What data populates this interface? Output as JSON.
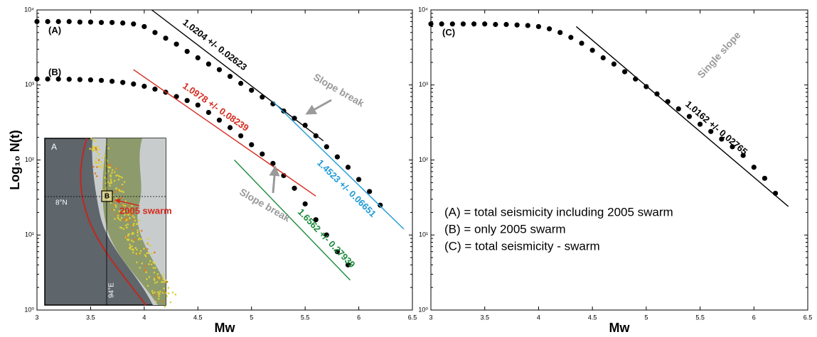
{
  "chart_data": [
    {
      "type": "scatter",
      "ylabel": "Log₁₀ N(t)",
      "xlabel": "Mw",
      "ylog": true,
      "xlim": [
        3,
        6.5
      ],
      "xticks": [
        3,
        3.5,
        4,
        4.5,
        5,
        5.5,
        6,
        6.5
      ],
      "ylim": [
        1,
        10000
      ],
      "yticks": [
        {
          "value": 1,
          "label": "10⁰"
        },
        {
          "value": 10,
          "label": "10¹"
        },
        {
          "value": 100,
          "label": "10²"
        },
        {
          "value": 1000,
          "label": "10³"
        },
        {
          "value": 10000,
          "label": "10⁴"
        }
      ],
      "series": [
        {
          "name": "(A)",
          "color": "#000000",
          "x": [
            3.0,
            3.1,
            3.2,
            3.3,
            3.4,
            3.5,
            3.6,
            3.7,
            3.8,
            3.9,
            4.0,
            4.1,
            4.2,
            4.3,
            4.4,
            4.5,
            4.6,
            4.7,
            4.8,
            4.9,
            5.0,
            5.1,
            5.2,
            5.3,
            5.4,
            5.5,
            5.6,
            5.7,
            5.8,
            5.9,
            6.0,
            6.1,
            6.2
          ],
          "values": [
            7000,
            7000,
            7000,
            7000,
            6900,
            6900,
            6800,
            6800,
            6700,
            6500,
            6000,
            5000,
            4200,
            3500,
            2800,
            2300,
            1900,
            1600,
            1300,
            1050,
            850,
            690,
            560,
            450,
            360,
            290,
            210,
            150,
            110,
            80,
            55,
            38,
            25
          ]
        },
        {
          "name": "(B)",
          "color": "#000000",
          "x": [
            3.0,
            3.1,
            3.2,
            3.3,
            3.4,
            3.5,
            3.6,
            3.7,
            3.8,
            3.9,
            4.0,
            4.1,
            4.2,
            4.3,
            4.4,
            4.5,
            4.6,
            4.7,
            4.8,
            4.9,
            5.0,
            5.1,
            5.2,
            5.3,
            5.4,
            5.5,
            5.6,
            5.7,
            5.8,
            5.9
          ],
          "values": [
            1200,
            1200,
            1200,
            1190,
            1180,
            1170,
            1150,
            1120,
            1080,
            1030,
            960,
            880,
            800,
            700,
            620,
            540,
            430,
            340,
            270,
            210,
            160,
            120,
            90,
            62,
            42,
            26,
            16,
            10,
            6,
            4
          ]
        }
      ],
      "fits": [
        {
          "name": "1.0204 +/- 0.02623",
          "color": "#000000",
          "x": [
            4.07,
            5.67
          ],
          "values": [
            10000,
            180
          ]
        },
        {
          "name": "1.0978 +/- 0.08239",
          "color": "#d42a1e",
          "x": [
            3.9,
            5.6
          ],
          "values": [
            1600,
            33
          ]
        },
        {
          "name": "1.4523 +/- 0.06651",
          "color": "#1e9ad6",
          "x": [
            5.2,
            6.42
          ],
          "values": [
            600,
            12
          ]
        },
        {
          "name": "1.6562 +/- 0.27939",
          "color": "#1a8a3a",
          "x": [
            4.84,
            5.92
          ],
          "values": [
            100,
            2.5
          ]
        }
      ],
      "annotations": [
        "Slope break",
        "Slope break"
      ],
      "inset": {
        "panel": "A",
        "box": "B",
        "lat": "8°N",
        "lon": "94°E",
        "label": "2005 swarm"
      }
    },
    {
      "type": "scatter",
      "xlabel": "Mw",
      "ylog": true,
      "xlim": [
        3,
        6.5
      ],
      "xticks": [
        3,
        3.5,
        4,
        4.5,
        5,
        5.5,
        6,
        6.5
      ],
      "ylim": [
        1,
        10000
      ],
      "yticks": [
        {
          "value": 1,
          "label": "10⁰"
        },
        {
          "value": 10,
          "label": "10¹"
        },
        {
          "value": 100,
          "label": "10²"
        },
        {
          "value": 1000,
          "label": "10³"
        },
        {
          "value": 10000,
          "label": "10⁴"
        }
      ],
      "series": [
        {
          "name": "(C)",
          "color": "#000000",
          "x": [
            3.0,
            3.1,
            3.2,
            3.3,
            3.4,
            3.5,
            3.6,
            3.7,
            3.8,
            3.9,
            4.0,
            4.1,
            4.2,
            4.3,
            4.4,
            4.5,
            4.6,
            4.7,
            4.8,
            4.9,
            5.0,
            5.1,
            5.2,
            5.3,
            5.4,
            5.5,
            5.6,
            5.7,
            5.8,
            5.9,
            6.0,
            6.1,
            6.2
          ],
          "values": [
            6500,
            6500,
            6500,
            6500,
            6500,
            6500,
            6400,
            6400,
            6300,
            6200,
            6000,
            5600,
            5000,
            4300,
            3600,
            2900,
            2300,
            1900,
            1500,
            1200,
            950,
            760,
            600,
            480,
            380,
            300,
            240,
            190,
            150,
            115,
            80,
            57,
            36
          ]
        }
      ],
      "fits": [
        {
          "name": "1.0162 +/- 0.02765",
          "color": "#000000",
          "x": [
            4.35,
            6.32
          ],
          "values": [
            6000,
            24
          ]
        }
      ],
      "annotations": [
        "Single slope"
      ],
      "notes": [
        "(A) = total seismicity including 2005 swarm",
        "(B) = only 2005 swarm",
        "(C) = total seismicity - swarm"
      ]
    }
  ]
}
